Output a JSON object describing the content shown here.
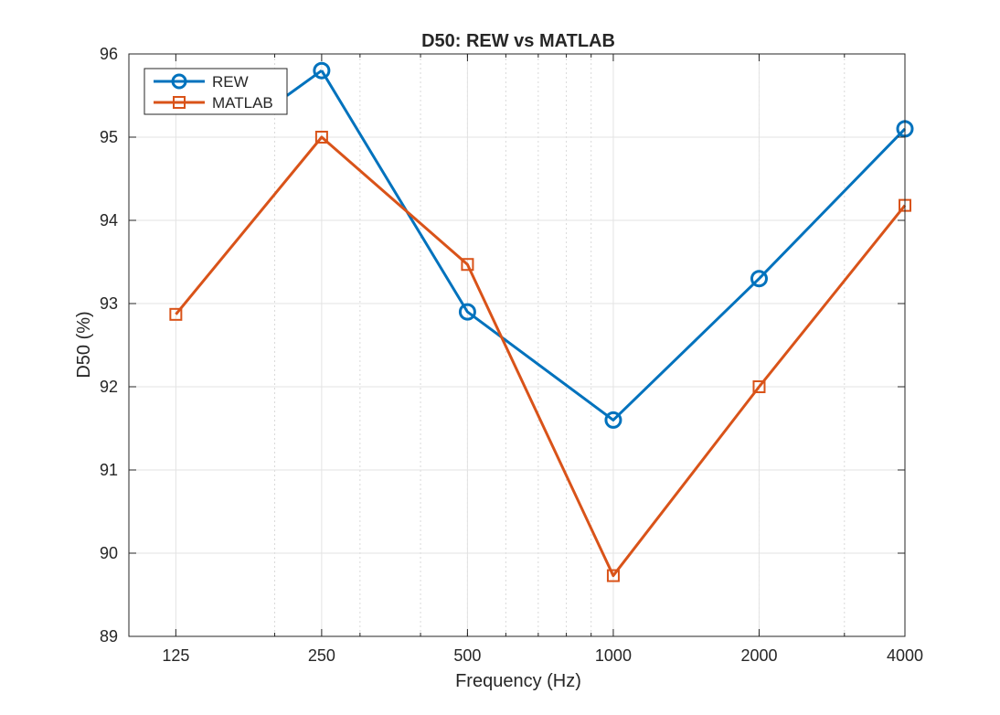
{
  "chart_data": {
    "type": "line",
    "title": "D50: REW vs MATLAB",
    "xlabel": "Frequency (Hz)",
    "ylabel": "D50 (%)",
    "xscale": "log",
    "x": [
      125,
      250,
      500,
      1000,
      2000,
      4000
    ],
    "x_tick_labels": [
      "125",
      "250",
      "500",
      "1000",
      "2000",
      "4000"
    ],
    "xlim": [
      100,
      4000
    ],
    "ylim": [
      89,
      96
    ],
    "y_ticks": [
      89,
      90,
      91,
      92,
      93,
      94,
      95,
      96
    ],
    "y_tick_labels": [
      "89",
      "90",
      "91",
      "92",
      "93",
      "94",
      "95",
      "96"
    ],
    "grid": true,
    "legend_position": "top-left",
    "series": [
      {
        "name": "REW",
        "color": "#0072BD",
        "marker": "circle",
        "values": [
          null,
          95.8,
          92.9,
          91.6,
          93.3,
          95.1
        ],
        "first_segment_start": 95.5
      },
      {
        "name": "MATLAB",
        "color": "#D95319",
        "marker": "square",
        "values": [
          92.87,
          95.0,
          93.47,
          89.73,
          92.0,
          94.18
        ]
      }
    ]
  }
}
